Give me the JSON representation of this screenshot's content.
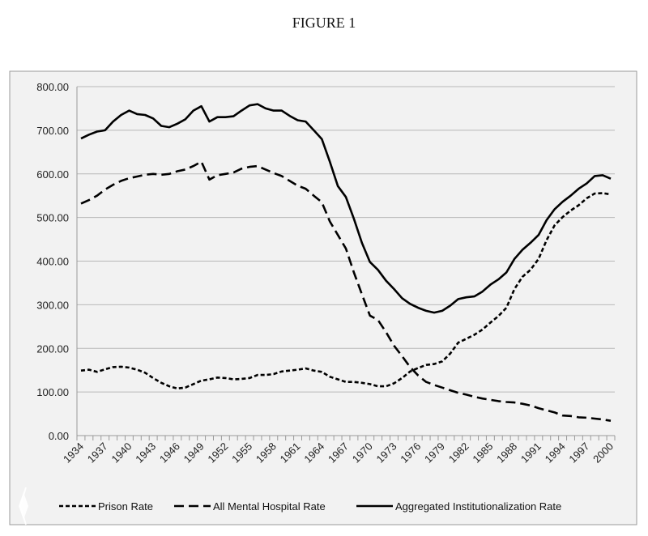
{
  "figure_title": "FIGURE 1",
  "chart_data": {
    "type": "line",
    "title": "",
    "xlabel": "",
    "ylabel": "",
    "ylim": [
      0,
      800
    ],
    "y_ticks": [
      "0.00",
      "100.00",
      "200.00",
      "300.00",
      "400.00",
      "500.00",
      "600.00",
      "700.00",
      "800.00"
    ],
    "x_tick_labels": [
      "1934",
      "1937",
      "1940",
      "1943",
      "1946",
      "1949",
      "1952",
      "1955",
      "1958",
      "1961",
      "1964",
      "1967",
      "1970",
      "1973",
      "1976",
      "1979",
      "1982",
      "1985",
      "1988",
      "1991",
      "1994",
      "1997",
      "2000"
    ],
    "grid": "horizontal",
    "legend": "bottom",
    "x_start": 1934,
    "x_end": 2000,
    "series": [
      {
        "name": "Prison Rate",
        "style": "short-dash",
        "color": "#000000",
        "values": [
          149,
          151,
          146,
          152,
          157,
          158,
          156,
          151,
          144,
          132,
          121,
          113,
          108,
          110,
          118,
          126,
          129,
          133,
          132,
          129,
          130,
          132,
          139,
          139,
          141,
          147,
          149,
          151,
          154,
          149,
          146,
          135,
          129,
          123,
          123,
          121,
          118,
          113,
          113,
          120,
          132,
          147,
          155,
          162,
          164,
          170,
          188,
          213,
          222,
          231,
          243,
          259,
          274,
          293,
          336,
          364,
          380,
          405,
          448,
          482,
          501,
          516,
          528,
          544,
          555,
          556,
          553
        ]
      },
      {
        "name": "All Mental Hospital Rate",
        "style": "long-dash",
        "color": "#000000",
        "values": [
          532,
          540,
          550,
          564,
          575,
          584,
          590,
          594,
          598,
          600,
          598,
          600,
          606,
          610,
          618,
          628,
          587,
          597,
          600,
          603,
          612,
          616,
          618,
          610,
          602,
          595,
          584,
          573,
          566,
          550,
          535,
          491,
          460,
          429,
          374,
          324,
          275,
          265,
          237,
          206,
          182,
          157,
          138,
          123,
          116,
          110,
          104,
          98,
          94,
          89,
          85,
          82,
          79,
          77,
          76,
          73,
          69,
          63,
          58,
          53,
          46,
          45,
          42,
          41,
          39,
          37,
          34
        ]
      },
      {
        "name": "Aggregated Institutionalization Rate",
        "style": "solid",
        "color": "#000000",
        "values": [
          681,
          690,
          697,
          700,
          720,
          735,
          745,
          737,
          735,
          727,
          710,
          707,
          715,
          725,
          745,
          755,
          720,
          730,
          730,
          732,
          745,
          757,
          760,
          750,
          745,
          745,
          733,
          723,
          720,
          700,
          680,
          628,
          572,
          547,
          497,
          442,
          398,
          380,
          355,
          336,
          315,
          302,
          293,
          286,
          282,
          286,
          298,
          313,
          317,
          319,
          330,
          346,
          358,
          374,
          405,
          426,
          442,
          460,
          494,
          519,
          536,
          550,
          566,
          578,
          595,
          597,
          589
        ]
      }
    ]
  }
}
